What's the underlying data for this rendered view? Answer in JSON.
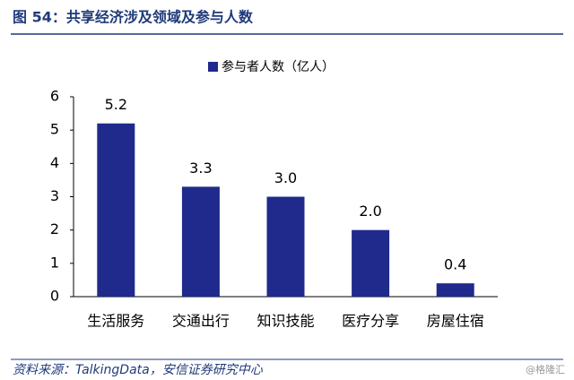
{
  "chart_data": {
    "type": "bar",
    "title": "图 54：共享经济涉及领域及参与人数",
    "categories": [
      "生活服务",
      "交通出行",
      "知识技能",
      "医疗分享",
      "房屋住宿"
    ],
    "series": [
      {
        "name": "参与者人数（亿人）",
        "color": "#1f2a8c",
        "values": [
          5.2,
          3.3,
          3.0,
          2.0,
          0.4
        ],
        "value_labels": [
          "5.2",
          "3.3",
          "3.0",
          "2.0",
          "0.4"
        ]
      }
    ],
    "ylim": [
      0,
      6
    ],
    "yticks": [
      0,
      1,
      2,
      3,
      4,
      5,
      6
    ],
    "grid": false,
    "source": "资料来源：TalkingData，安信证券研究中心",
    "watermark": "@格隆汇"
  }
}
